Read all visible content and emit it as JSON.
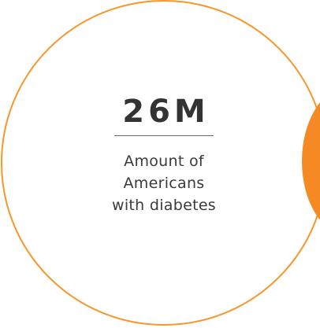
{
  "stat": {
    "value": "26M",
    "caption_lines": [
      "Amount of",
      "Americans",
      "with diabetes"
    ]
  },
  "colors": {
    "ring": "#F7962B",
    "accent_blob": "#F58A25",
    "text": "#333333"
  }
}
